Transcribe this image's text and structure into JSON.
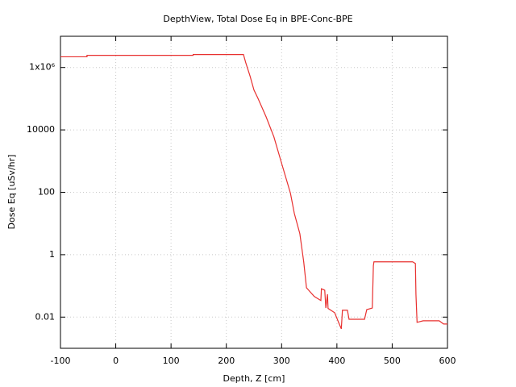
{
  "chart_data": {
    "type": "line",
    "title": "DepthView, Total Dose Eq in BPE-Conc-BPE",
    "x_label": "Depth, Z [cm]",
    "y_label": "Dose Eq [uSv/hr]",
    "xlim": [
      -100,
      600
    ],
    "xticks": [
      -100,
      0,
      100,
      200,
      300,
      400,
      500,
      600
    ],
    "ylim": [
      0.001,
      10000000
    ],
    "yticks": [
      0.01,
      1,
      100,
      10000,
      {
        "value": 1000000,
        "label": "1x10⁶"
      }
    ],
    "log_y": true,
    "grid": true,
    "series": [
      {
        "name": "Total Dose Eq",
        "color": "#e8302f",
        "x": [
          -100,
          -52,
          -52,
          140,
          140,
          231,
          235,
          243,
          250,
          257,
          272,
          286,
          301,
          316,
          323,
          333,
          340,
          345,
          359,
          371,
          372,
          378,
          380,
          383,
          384,
          396,
          403,
          408,
          410,
          419,
          422,
          450,
          454,
          464,
          466,
          467,
          537,
          542,
          543,
          545,
          556,
          585,
          593,
          600
        ],
        "values": [
          2200000,
          2200000,
          2450000,
          2450000,
          2600000,
          2600000,
          1450000,
          525000,
          190000,
          105000,
          26000,
          6000,
          740,
          93,
          21,
          4.7,
          0.59,
          0.087,
          0.046,
          0.034,
          0.081,
          0.073,
          0.0195,
          0.054,
          0.019,
          0.0138,
          0.0068,
          0.0042,
          0.0166,
          0.0166,
          0.0085,
          0.0085,
          0.0174,
          0.0195,
          0.44,
          0.59,
          0.59,
          0.52,
          0.054,
          0.0068,
          0.0076,
          0.0076,
          0.006,
          0.006
        ]
      }
    ]
  }
}
